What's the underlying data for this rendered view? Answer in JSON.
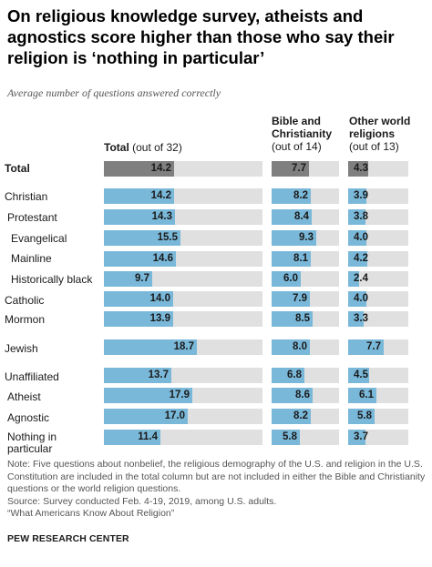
{
  "title": "On religious knowledge survey, atheists and agnostics score higher than those who say their religion is ‘nothing in particular’",
  "subtitle": "Average number of questions answered correctly",
  "columns": {
    "total": {
      "head": "Total",
      "sub": " (out of 32)"
    },
    "bible": {
      "head_line1": "Bible and",
      "head_line2": "Christianity",
      "sub": "(out of 14)"
    },
    "world": {
      "head_line1": "Other world",
      "head_line2": "religions",
      "sub": "(out of 13)"
    }
  },
  "colors": {
    "total_row": "#7f7f7f",
    "bar": "#7ab8d9",
    "track": "#e0e0e0"
  },
  "chart_data": {
    "type": "bar",
    "orientation": "horizontal",
    "categories": [
      "Total",
      "Christian",
      "Protestant",
      "Evangelical",
      "Mainline",
      "Historically black",
      "Catholic",
      "Mormon",
      "Jewish",
      "Unaffiliated",
      "Atheist",
      "Agnostic",
      "Nothing in particular"
    ],
    "series": [
      {
        "name": "Total (out of 32)",
        "max": 32,
        "values": [
          14.2,
          14.2,
          14.3,
          15.5,
          14.6,
          9.7,
          14.0,
          13.9,
          18.7,
          13.7,
          17.9,
          17.0,
          11.4
        ],
        "labels": [
          "14.2",
          "14.2",
          "14.3",
          "15.5",
          "14.6",
          "9.7",
          "14.0",
          "13.9",
          "18.7",
          "13.7",
          "17.9",
          "17.0",
          "11.4"
        ]
      },
      {
        "name": "Bible and Christianity (out of 14)",
        "max": 14,
        "values": [
          7.7,
          8.2,
          8.4,
          9.3,
          8.1,
          6.0,
          7.9,
          8.5,
          8.0,
          6.8,
          8.6,
          8.2,
          5.8
        ],
        "labels": [
          "7.7",
          "8.2",
          "8.4",
          "9.3",
          "8.1",
          "6.0",
          "7.9",
          "8.5",
          "8.0",
          "6.8",
          "8.6",
          "8.2",
          "5.8"
        ]
      },
      {
        "name": "Other world religions (out of 13)",
        "max": 13,
        "values": [
          4.3,
          3.9,
          3.8,
          4.0,
          4.2,
          2.4,
          4.0,
          3.3,
          7.7,
          4.5,
          6.1,
          5.8,
          3.7
        ],
        "labels": [
          "4.3",
          "3.9",
          "3.8",
          "4.0",
          "4.2",
          "2.4",
          "4.0",
          "3.3",
          "7.7",
          "4.5",
          "6.1",
          "5.8",
          "3.7"
        ]
      }
    ]
  },
  "row_labels": [
    "Total",
    "Christian",
    "Protestant",
    "Evangelical",
    "Mainline",
    "Historically black",
    "Catholic",
    "Mormon",
    "Jewish",
    "Unaffiliated",
    "Atheist",
    "Agnostic",
    "Nothing in",
    "particular"
  ],
  "notes": {
    "note": "Note: Five questions about nonbelief, the religious demography of the U.S. and religion in the U.S. Constitution are included in the total column but are not included in either the Bible and Christianity questions or the world religion questions.",
    "source": "Source: Survey conducted Feb. 4-19, 2019, among U.S. adults.",
    "report": "“What Americans Know About Religion”"
  },
  "brand": "PEW RESEARCH CENTER"
}
